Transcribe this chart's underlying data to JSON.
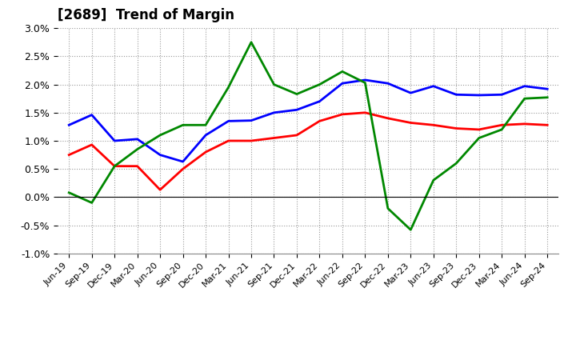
{
  "title": "[2689]  Trend of Margin",
  "x_labels": [
    "Jun-19",
    "Sep-19",
    "Dec-19",
    "Mar-20",
    "Jun-20",
    "Sep-20",
    "Dec-20",
    "Mar-21",
    "Jun-21",
    "Sep-21",
    "Dec-21",
    "Mar-22",
    "Jun-22",
    "Sep-22",
    "Dec-22",
    "Mar-23",
    "Jun-23",
    "Sep-23",
    "Dec-23",
    "Mar-24",
    "Jun-24",
    "Sep-24"
  ],
  "ordinary_income": [
    1.28,
    1.46,
    1.0,
    1.03,
    0.75,
    0.63,
    1.1,
    1.35,
    1.36,
    1.5,
    1.55,
    1.7,
    2.02,
    2.08,
    2.02,
    1.85,
    1.97,
    1.82,
    1.81,
    1.82,
    1.97,
    1.92
  ],
  "net_income": [
    0.75,
    0.93,
    0.55,
    0.55,
    0.13,
    0.5,
    0.8,
    1.0,
    1.0,
    1.05,
    1.1,
    1.35,
    1.47,
    1.5,
    1.4,
    1.32,
    1.28,
    1.22,
    1.2,
    1.28,
    1.3,
    1.28
  ],
  "operating_cashflow": [
    0.08,
    -0.1,
    0.55,
    0.85,
    1.1,
    1.28,
    1.28,
    1.95,
    2.75,
    2.0,
    1.83,
    2.0,
    2.23,
    2.03,
    -0.2,
    -0.58,
    0.3,
    0.6,
    1.05,
    1.2,
    1.75,
    1.77
  ],
  "ylim": [
    -1.0,
    3.0
  ],
  "yticks": [
    -1.0,
    -0.5,
    0.0,
    0.5,
    1.0,
    1.5,
    2.0,
    2.5,
    3.0
  ],
  "colors": {
    "ordinary_income": "#0000ff",
    "net_income": "#ff0000",
    "operating_cashflow": "#008800"
  },
  "background_color": "#ffffff",
  "grid_color": "#999999",
  "line_width": 2.0
}
